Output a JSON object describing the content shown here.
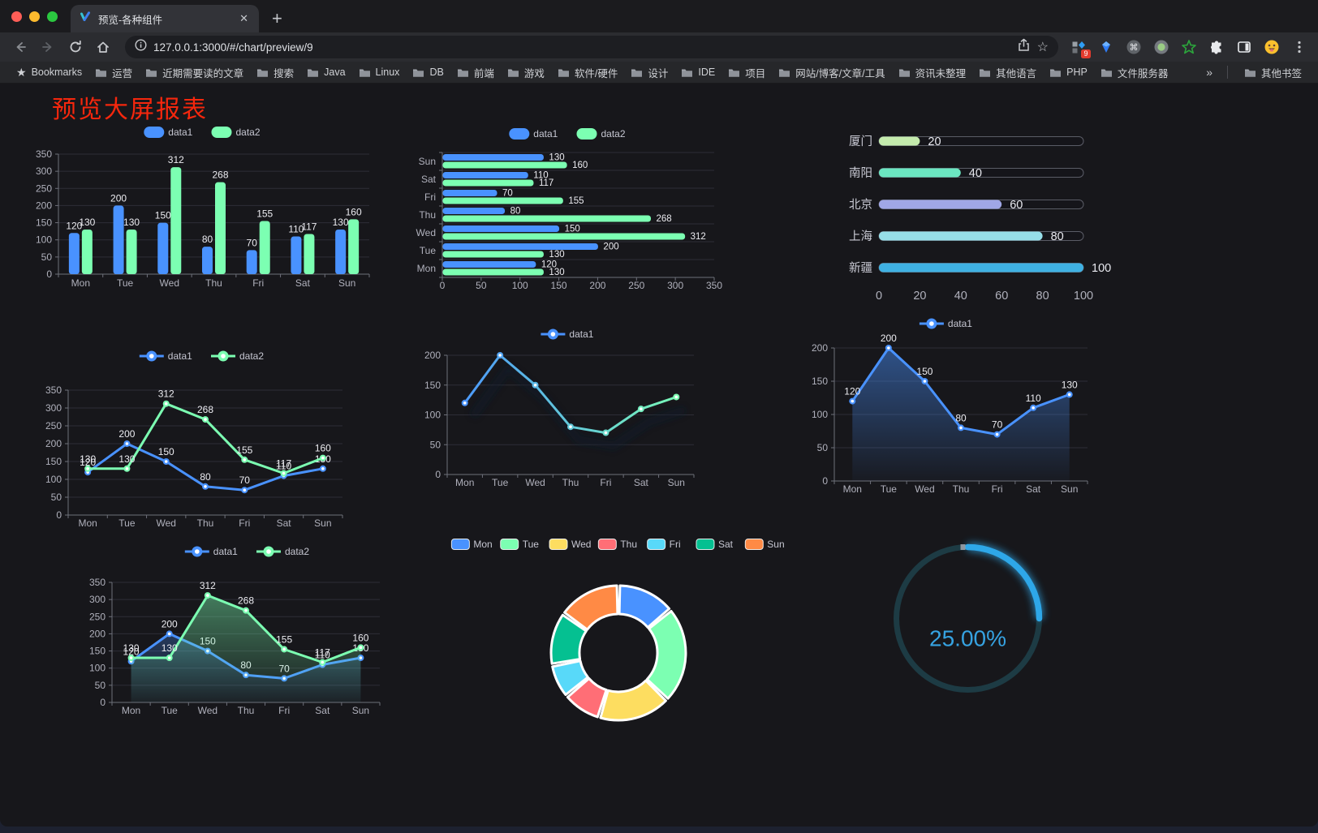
{
  "browser": {
    "tab": {
      "title": "预览-各种组件",
      "close_label": "✕"
    },
    "new_tab_label": "+",
    "url": "127.0.0.1:3000/#/chart/preview/9",
    "extension_badge": "9",
    "bookmarks_bar": {
      "label": "Bookmarks",
      "folders": [
        "运营",
        "近期需要读的文章",
        "搜索",
        "Java",
        "Linux",
        "DB",
        "前端",
        "游戏",
        "软件/硬件",
        "设计",
        "IDE",
        "项目",
        "网站/博客/文章/工具",
        "资讯未整理",
        "其他语言",
        "PHP",
        "文件服务器"
      ],
      "overflow_chevron": "»",
      "other_bookmarks": "其他书签"
    }
  },
  "page": {
    "title": "预览大屏报表",
    "title_color": "#f5270d",
    "background": "#17171b"
  },
  "theme": {
    "axis_label": "#b0b1bc",
    "axis_line": "#6e707a",
    "split_line": "#2e2e37",
    "value_label": "#ececf1",
    "legend_text": "#c6c7d2"
  },
  "chart_data": [
    {
      "id": "grouped-bar",
      "type": "bar",
      "categories": [
        "Mon",
        "Tue",
        "Wed",
        "Thu",
        "Fri",
        "Sat",
        "Sun"
      ],
      "series": [
        {
          "name": "data1",
          "color": "#4992ff",
          "values": [
            120,
            200,
            150,
            80,
            70,
            110,
            130
          ]
        },
        {
          "name": "data2",
          "color": "#7cffb2",
          "values": [
            130,
            130,
            312,
            268,
            155,
            117,
            160
          ]
        }
      ],
      "ylim": [
        0,
        350
      ],
      "ytick_step": 50,
      "legend_position": "top",
      "value_labels": true,
      "grid": true
    },
    {
      "id": "horizontal-bar",
      "type": "bar-horizontal",
      "categories": [
        "Mon",
        "Tue",
        "Wed",
        "Thu",
        "Fri",
        "Sat",
        "Sun"
      ],
      "category_order": "bottom-to-top",
      "series": [
        {
          "name": "data1",
          "color": "#4992ff",
          "values": [
            120,
            200,
            150,
            80,
            70,
            110,
            130
          ]
        },
        {
          "name": "data2",
          "color": "#7cffb2",
          "values": [
            130,
            130,
            312,
            268,
            155,
            117,
            160
          ]
        }
      ],
      "xlim": [
        0,
        350
      ],
      "xtick_step": 50,
      "legend_position": "top",
      "value_labels": true
    },
    {
      "id": "city-progress",
      "type": "progress-bars",
      "xlim": [
        0,
        100
      ],
      "xticks": [
        0,
        20,
        40,
        60,
        80,
        100
      ],
      "rows": [
        {
          "label": "厦门",
          "value": 20,
          "color": "#c4ebad"
        },
        {
          "label": "南阳",
          "value": 40,
          "color": "#6be6c1"
        },
        {
          "label": "北京",
          "value": 60,
          "color": "#a0a7e6"
        },
        {
          "label": "上海",
          "value": 80,
          "color": "#96dee8"
        },
        {
          "label": "新疆",
          "value": 100,
          "color": "#3fb1e3"
        }
      ]
    },
    {
      "id": "line-two",
      "type": "line",
      "categories": [
        "Mon",
        "Tue",
        "Wed",
        "Thu",
        "Fri",
        "Sat",
        "Sun"
      ],
      "series": [
        {
          "name": "data1",
          "color": "#4992ff",
          "values": [
            120,
            200,
            150,
            80,
            70,
            110,
            130
          ]
        },
        {
          "name": "data2",
          "color": "#7cffb2",
          "values": [
            130,
            130,
            312,
            268,
            155,
            117,
            160
          ]
        }
      ],
      "ylim": [
        0,
        350
      ],
      "ytick_step": 50,
      "legend_position": "top",
      "value_labels": true,
      "markers": true
    },
    {
      "id": "line-gradient",
      "type": "line",
      "categories": [
        "Mon",
        "Tue",
        "Wed",
        "Thu",
        "Fri",
        "Sat",
        "Sun"
      ],
      "series": [
        {
          "name": "data1",
          "gradient": [
            "#4992ff",
            "#7cffb2"
          ],
          "values": [
            120,
            200,
            150,
            80,
            70,
            110,
            130
          ]
        }
      ],
      "ylim": [
        0,
        200
      ],
      "ytick_step": 50,
      "legend_position": "top",
      "value_labels": false,
      "markers": true,
      "shadow": true
    },
    {
      "id": "area-single",
      "type": "area",
      "categories": [
        "Mon",
        "Tue",
        "Wed",
        "Thu",
        "Fri",
        "Sat",
        "Sun"
      ],
      "series": [
        {
          "name": "data1",
          "color": "#4992ff",
          "area": true,
          "values": [
            120,
            200,
            150,
            80,
            70,
            110,
            130
          ]
        }
      ],
      "ylim": [
        0,
        200
      ],
      "ytick_step": 50,
      "legend_position": "top",
      "value_labels": true,
      "markers": true
    },
    {
      "id": "area-two",
      "type": "area",
      "categories": [
        "Mon",
        "Tue",
        "Wed",
        "Thu",
        "Fri",
        "Sat",
        "Sun"
      ],
      "series": [
        {
          "name": "data1",
          "color": "#4992ff",
          "area": true,
          "values": [
            120,
            200,
            150,
            80,
            70,
            110,
            130
          ]
        },
        {
          "name": "data2",
          "color": "#7cffb2",
          "area": true,
          "values": [
            130,
            130,
            312,
            268,
            155,
            117,
            160
          ]
        }
      ],
      "ylim": [
        0,
        350
      ],
      "ytick_step": 50,
      "legend_position": "top",
      "value_labels": true,
      "markers": true
    },
    {
      "id": "donut",
      "type": "pie",
      "legend_position": "top",
      "inner_radius_ratio": 0.58,
      "slices": [
        {
          "label": "Mon",
          "value": 120,
          "color": "#4992ff"
        },
        {
          "label": "Tue",
          "value": 200,
          "color": "#7cffb2"
        },
        {
          "label": "Wed",
          "value": 150,
          "color": "#fddd60"
        },
        {
          "label": "Thu",
          "value": 80,
          "color": "#ff6e76"
        },
        {
          "label": "Fri",
          "value": 70,
          "color": "#58d9f9"
        },
        {
          "label": "Sat",
          "value": 110,
          "color": "#05c091"
        },
        {
          "label": "Sun",
          "value": 130,
          "color": "#ff8a45"
        }
      ]
    },
    {
      "id": "gauge",
      "type": "gauge",
      "value": 25,
      "max": 100,
      "display": "25.00%",
      "progress_color": "#2ea7e8",
      "track_color": "#1d3b44",
      "text_color": "#36a3e2"
    }
  ]
}
